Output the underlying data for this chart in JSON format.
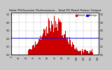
{
  "title": "Solar PV/Inverter Performance - Total PV Panel Power Output",
  "bg_color": "#c8c8c8",
  "plot_bg": "#ffffff",
  "bar_color": "#cc0000",
  "line_color": "#0000ee",
  "line_value": 0.42,
  "ylim": [
    0,
    1.05
  ],
  "xlim": [
    -1,
    145
  ],
  "num_bars": 144,
  "grid_color": "#aaaaaa",
  "tick_color": "#000000",
  "title_fontsize": 3.2,
  "axis_fontsize": 2.2,
  "legend_fontsize": 2.2
}
